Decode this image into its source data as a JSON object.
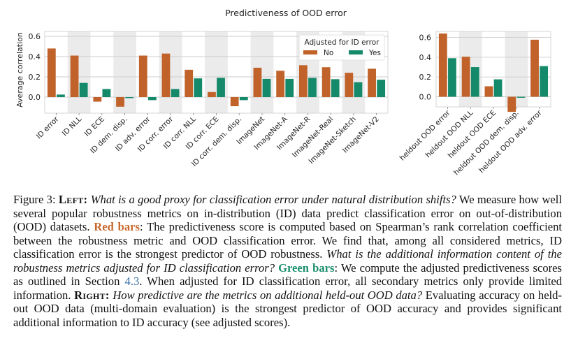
{
  "colors": {
    "no": "#c0622a",
    "yes": "#158a6a",
    "band": "#ebebeb",
    "grid": "#cccccc"
  },
  "chart_data": [
    {
      "type": "bar",
      "title": "Predictiveness of OOD error",
      "xlabel": "",
      "ylabel": "Average correlation",
      "ylim": [
        -0.17,
        0.65
      ],
      "yticks": [
        "0.0",
        "0.2",
        "0.4",
        "0.6"
      ],
      "ytick_values": [
        0.0,
        0.2,
        0.4,
        0.6
      ],
      "grid": true,
      "legend": {
        "title": "Adjusted for ID error",
        "placement": "top-right",
        "entries": [
          "No",
          "Yes"
        ]
      },
      "categories": [
        "ID error",
        "ID NLL",
        "ID ECE",
        "ID dem. disp.",
        "ID adv. error",
        "ID corr. error",
        "ID corr. NLL",
        "ID corr. ECE",
        "ID corr. dem. disp.",
        "ImageNet",
        "ImageNet-A",
        "ImageNet-R",
        "ImageNet-Real",
        "ImageNet-Sketch",
        "ImageNet-V2"
      ],
      "series": [
        {
          "name": "No",
          "values": [
            0.48,
            0.41,
            -0.045,
            -0.095,
            0.41,
            0.43,
            0.27,
            0.05,
            -0.09,
            0.29,
            0.26,
            0.315,
            0.295,
            0.24,
            0.28
          ]
        },
        {
          "name": "Yes",
          "values": [
            0.025,
            0.14,
            0.08,
            -0.01,
            -0.03,
            0.08,
            0.185,
            0.19,
            -0.03,
            0.18,
            0.18,
            0.19,
            0.177,
            0.147,
            0.172
          ]
        }
      ]
    },
    {
      "type": "bar",
      "title": "",
      "xlabel": "",
      "ylabel": "",
      "ylim": [
        -0.17,
        0.65
      ],
      "yticks": [
        "0.0",
        "0.2",
        "0.4",
        "0.6"
      ],
      "ytick_values": [
        0.0,
        0.2,
        0.4,
        0.6
      ],
      "grid": true,
      "categories": [
        "heldout OOD error",
        "heldout OOD NLL",
        "heldout OOD ECE",
        "heldout OOD dem. disp.",
        "heldout OOD adv. error"
      ],
      "series": [
        {
          "name": "No",
          "values": [
            0.64,
            0.405,
            0.106,
            -0.153,
            0.577
          ]
        },
        {
          "name": "Yes",
          "values": [
            0.39,
            0.3,
            0.176,
            -0.01,
            0.31
          ]
        }
      ]
    }
  ],
  "caption": {
    "fig_label": "Figure 3: ",
    "left_label": "Left:",
    "q1": "What is a good proxy for classification error under natural distribution shifts?",
    "t1": " We measure how well several popular robustness metrics on in-distribution (ID) data predict classification error on out-of-distribution (OOD) datasets. ",
    "red_bars": "Red bars",
    "t2": ": The predictiveness score is computed based on Spearman’s rank correlation coefficient between the robustness metric and OOD classification error. We find that, among all considered metrics, ID classification error is the strongest predictor of OOD robustness. ",
    "q2": "What is the additional information content of the robustness metrics adjusted for ID classification error?",
    "green_bars": "Green bars",
    "t3": ": We compute the adjusted predictiveness scores as outlined in Section ",
    "section_ref": "4.3",
    "t4": ". When adjusted for ID classification error, all secondary metrics only provide limited information. ",
    "right_label": "Right:",
    "q3": "How predictive are the metrics on additional held-out OOD data?",
    "t5": " Evaluating accuracy on held-out OOD data (multi-domain evaluation) is the strongest predictor of OOD accuracy and provides significant additional information to ID accuracy (see adjusted scores)."
  }
}
